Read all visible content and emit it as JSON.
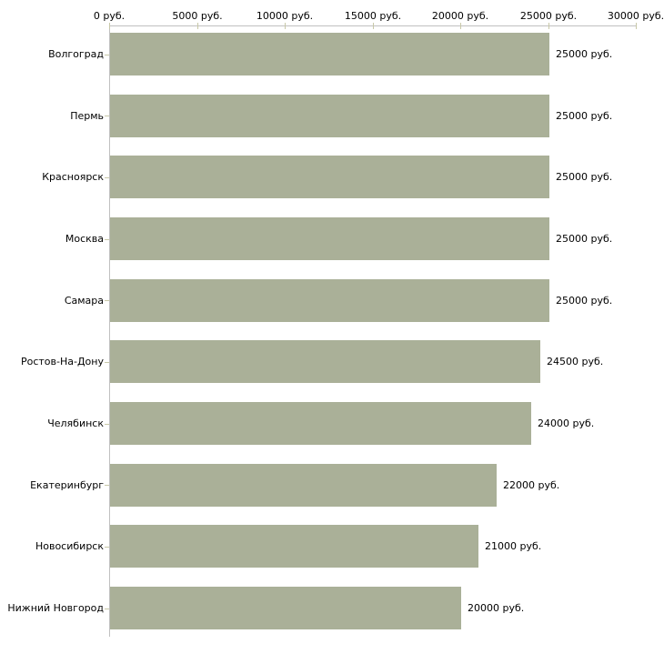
{
  "chart_data": {
    "type": "bar",
    "orientation": "horizontal",
    "title": "",
    "categories": [
      "Волгоград",
      "Пермь",
      "Красноярск",
      "Москва",
      "Самара",
      "Ростов-На-Дону",
      "Челябинск",
      "Екатеринбург",
      "Новосибирск",
      "Нижний Новгород"
    ],
    "values": [
      25000,
      25000,
      25000,
      25000,
      25000,
      24500,
      24000,
      22000,
      21000,
      20000
    ],
    "value_labels": [
      "25000 руб.",
      "25000 руб.",
      "25000 руб.",
      "25000 руб.",
      "25000 руб.",
      "24500 руб.",
      "24000 руб.",
      "22000 руб.",
      "21000 руб.",
      "20000 руб."
    ],
    "x_axis": {
      "position": "top",
      "min": 0,
      "max": 30000,
      "tick_interval": 5000,
      "tick_labels": [
        "0 руб.",
        "5000 руб.",
        "10000 руб.",
        "15000 руб.",
        "20000 руб.",
        "25000 руб.",
        "30000 руб."
      ],
      "unit": "руб."
    },
    "grid": false,
    "legend": false,
    "colors": {
      "bar": "#aab098",
      "axis_line": "#c0c0c0",
      "tick_mark": "#c8c8a8",
      "text": "#000000",
      "background": "#ffffff"
    }
  }
}
